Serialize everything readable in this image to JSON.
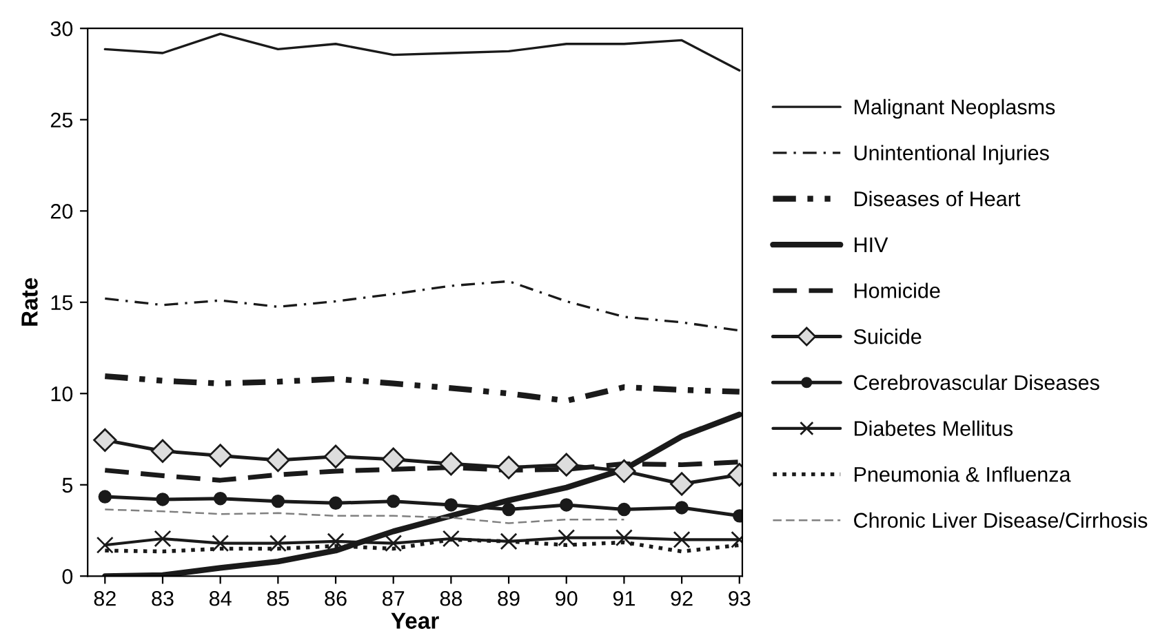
{
  "chart_data": {
    "type": "line",
    "xlabel": "Year",
    "ylabel": "Rate",
    "categories": [
      "82",
      "83",
      "84",
      "85",
      "86",
      "87",
      "88",
      "89",
      "90",
      "91",
      "92",
      "93"
    ],
    "ylim": [
      0,
      30
    ],
    "yticks": [
      0,
      5,
      10,
      15,
      20,
      25,
      30
    ],
    "grid": false,
    "legend": "right",
    "series": [
      {
        "name": "Malignant Neoplasms",
        "color": "#1a1a1a",
        "line_style": "solid",
        "marker": "none",
        "values": [
          28.86,
          28.65,
          29.7,
          28.86,
          29.15,
          28.55,
          28.65,
          28.75,
          29.15,
          29.15,
          29.35,
          27.7
        ]
      },
      {
        "name": "Unintentional Injuries",
        "color": "#1a1a1a",
        "line_style": "dashdot",
        "marker": "none",
        "values": [
          15.2,
          14.85,
          15.1,
          14.75,
          15.05,
          15.45,
          15.9,
          16.15,
          15.05,
          14.2,
          13.9,
          13.45
        ]
      },
      {
        "name": "Diseases of Heart",
        "color": "#1a1a1a",
        "line_style": "dashdotdot",
        "marker": "none",
        "values": [
          10.95,
          10.7,
          10.55,
          10.65,
          10.8,
          10.55,
          10.3,
          10.0,
          9.6,
          10.35,
          10.2,
          10.1
        ]
      },
      {
        "name": "HIV",
        "color": "#1a1a1a",
        "line_style": "solid",
        "marker": "none",
        "values": [
          0.0,
          0.05,
          0.45,
          0.8,
          1.4,
          2.45,
          3.3,
          4.15,
          4.85,
          5.85,
          7.65,
          8.85
        ]
      },
      {
        "name": "Homicide",
        "color": "#1a1a1a",
        "line_style": "dashed",
        "marker": "none",
        "values": [
          5.8,
          5.5,
          5.25,
          5.55,
          5.75,
          5.85,
          5.95,
          5.8,
          5.85,
          6.15,
          6.1,
          6.25
        ]
      },
      {
        "name": "Suicide",
        "color": "#1a1a1a",
        "line_style": "solid",
        "marker": "diamond",
        "values": [
          7.45,
          6.85,
          6.6,
          6.35,
          6.55,
          6.4,
          6.15,
          5.95,
          6.1,
          5.75,
          5.05,
          5.55
        ]
      },
      {
        "name": "Cerebrovascular Diseases",
        "color": "#1a1a1a",
        "line_style": "solid",
        "marker": "circle",
        "values": [
          4.35,
          4.2,
          4.25,
          4.1,
          4.0,
          4.1,
          3.9,
          3.65,
          3.9,
          3.65,
          3.75,
          3.3
        ]
      },
      {
        "name": "Diabetes Mellitus",
        "color": "#1a1a1a",
        "line_style": "solid",
        "marker": "cross",
        "values": [
          1.7,
          2.05,
          1.8,
          1.8,
          1.9,
          1.8,
          2.05,
          1.9,
          2.1,
          2.1,
          2.0,
          2.0
        ]
      },
      {
        "name": "Pneumonia & Influenza",
        "color": "#1a1a1a",
        "line_style": "dotted",
        "marker": "none",
        "values": [
          1.4,
          1.35,
          1.5,
          1.5,
          1.65,
          1.5,
          2.0,
          1.9,
          1.7,
          1.85,
          1.35,
          1.7
        ]
      },
      {
        "name": "Chronic Liver Disease/Cirrhosis",
        "color": "#808080",
        "line_style": "dashed",
        "marker": "none",
        "values": [
          3.65,
          3.55,
          3.4,
          3.45,
          3.3,
          3.3,
          3.2,
          2.9,
          3.1,
          3.1,
          null,
          null
        ]
      }
    ]
  }
}
